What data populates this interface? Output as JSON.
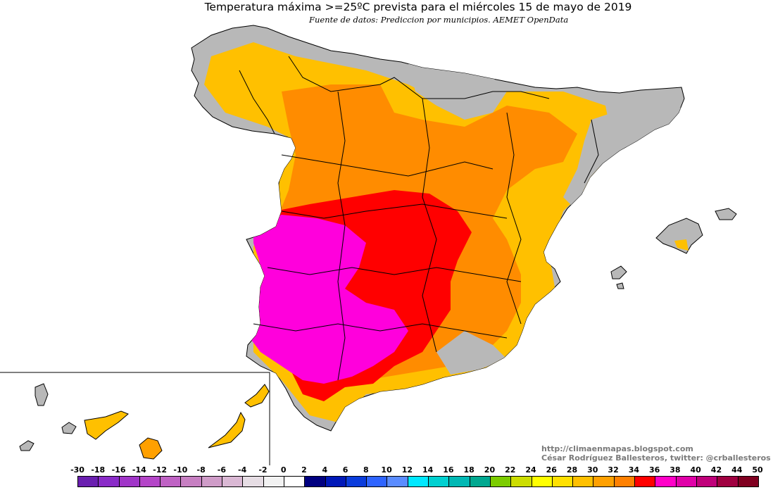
{
  "title": "Temperatura máxima >=25ºC prevista para el miércoles 15 de mayo de 2019",
  "subtitle": "Fuente de datos: Prediccion por municipios. AEMET OpenData",
  "credits": {
    "blog": "http://climaenmapas.blogspot.com",
    "author": "César Rodríguez Ballesteros, twitter: @crballesteros"
  },
  "colors": {
    "land_below_threshold": "#b8b8b8",
    "sea": "#ffffff",
    "borders": "#000000"
  },
  "legend": {
    "ticks": [
      "-30",
      "-18",
      "-16",
      "-14",
      "-12",
      "-10",
      "-8",
      "-6",
      "-4",
      "-2",
      "0",
      "2",
      "4",
      "6",
      "8",
      "10",
      "12",
      "14",
      "16",
      "18",
      "20",
      "22",
      "24",
      "26",
      "28",
      "30",
      "32",
      "34",
      "36",
      "38",
      "40",
      "42",
      "44",
      "50"
    ],
    "colors": [
      "#6a1fb0",
      "#8a2bc8",
      "#a035c8",
      "#b445c8",
      "#bf62c4",
      "#c77fc2",
      "#cf9cc8",
      "#dab8d4",
      "#e6dde4",
      "#f2f2f2",
      "#ffffff",
      "#000080",
      "#0018b8",
      "#0a3cdc",
      "#2e64ff",
      "#5a8cff",
      "#00e8ff",
      "#00d0d0",
      "#00b8b4",
      "#00a890",
      "#7ccc00",
      "#ccdd00",
      "#ffff00",
      "#ffe000",
      "#ffc000",
      "#ffa000",
      "#ff8000",
      "#ff0000",
      "#ff00c8",
      "#e000a8",
      "#c0007a",
      "#a00040",
      "#800020"
    ]
  }
}
